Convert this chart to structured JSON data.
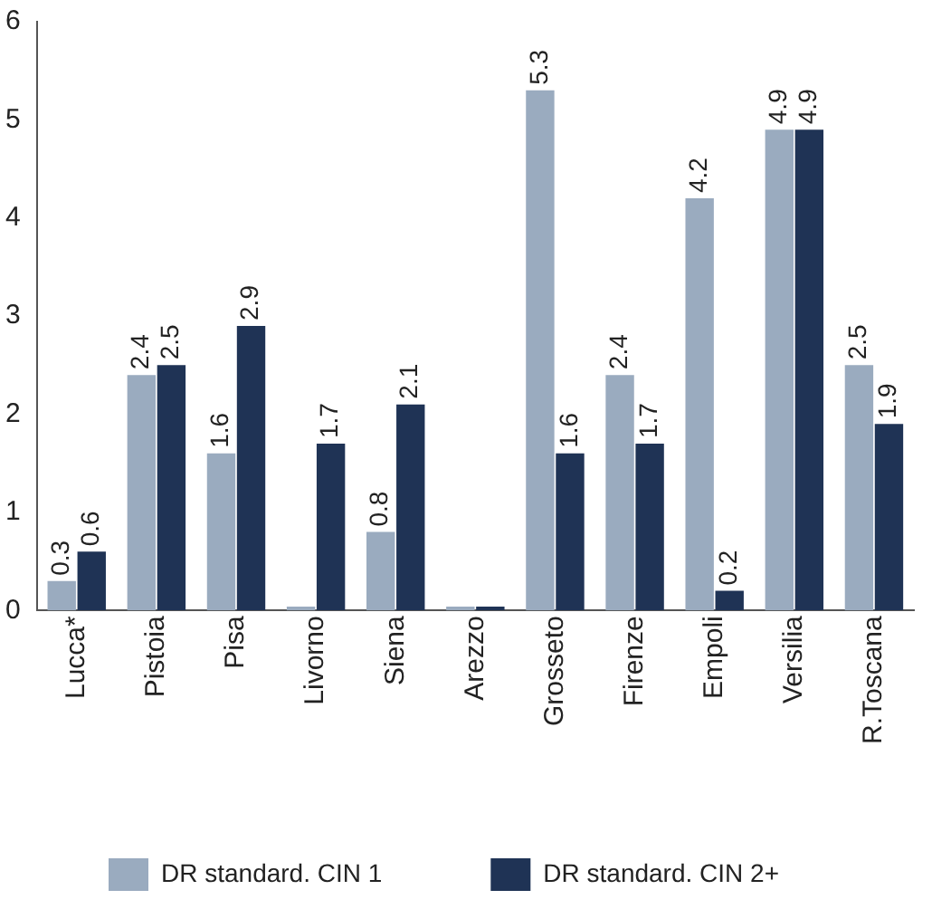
{
  "chart_data": {
    "type": "bar",
    "categories": [
      "Lucca*",
      "Pistoia",
      "Pisa",
      "Livorno",
      "Siena",
      "Arezzo",
      "Grosseto",
      "Firenze",
      "Empoli",
      "Versilia",
      "R.Toscana"
    ],
    "series": [
      {
        "name": "DR standard. CIN 1",
        "color": "#9aabbf",
        "values": [
          0.3,
          2.4,
          1.6,
          0.04,
          0.8,
          0.04,
          5.3,
          2.4,
          4.2,
          4.9,
          2.5
        ],
        "value_labels": [
          "0.3",
          "2.4",
          "1.6",
          null,
          "0.8",
          null,
          "5.3",
          "2.4",
          "4.2",
          "4.9",
          "2.5"
        ]
      },
      {
        "name": "DR standard. CIN 2+",
        "color": "#1f3355",
        "values": [
          0.6,
          2.5,
          2.9,
          1.7,
          2.1,
          0.04,
          1.6,
          1.7,
          0.2,
          4.9,
          1.9
        ],
        "value_labels": [
          "0.6",
          "2.5",
          "2.9",
          "1.7",
          "2.1",
          null,
          "1.6",
          "1.7",
          "0.2",
          "4.9",
          "1.9"
        ]
      }
    ],
    "ylim": [
      0,
      6
    ],
    "yticks": [
      0,
      1,
      2,
      3,
      4,
      5,
      6
    ],
    "grid": false,
    "legend": "bottom"
  }
}
